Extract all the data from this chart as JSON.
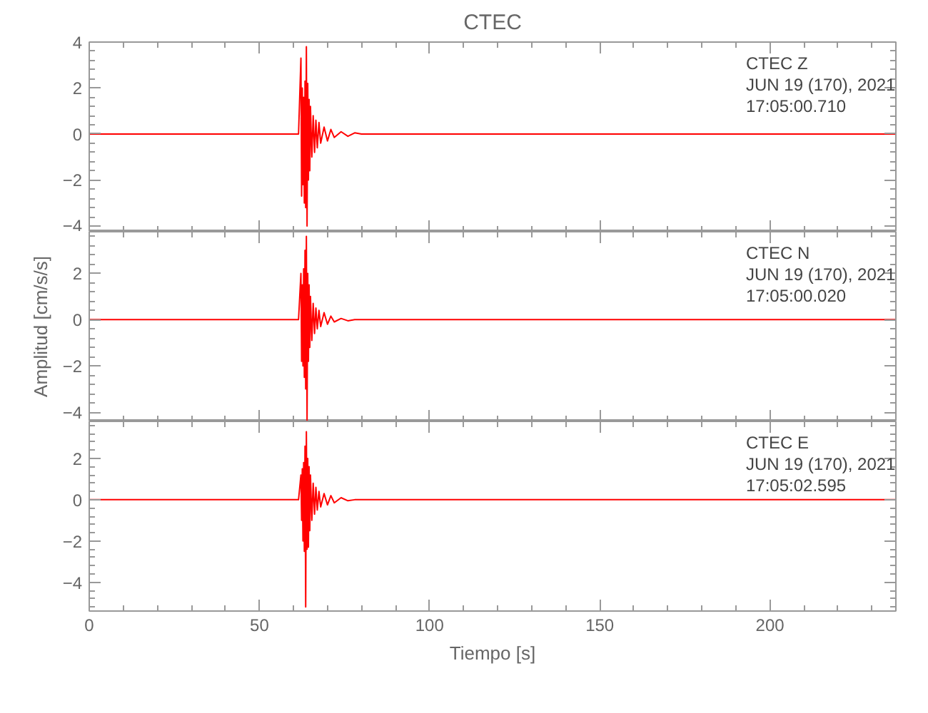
{
  "chart_data": [
    {
      "type": "line",
      "title": "CTEC",
      "annotations": [
        "CTEC   Z",
        "JUN 19 (170), 2021",
        "17:05:00.710"
      ],
      "tick_labels": "y",
      "xlim": [
        0,
        237
      ],
      "xticks": [
        0,
        50,
        100,
        150,
        200
      ],
      "ylim": [
        -4.25,
        4.0
      ],
      "yticks": [
        -4,
        -2,
        0,
        2,
        4
      ],
      "x": [
        0,
        10,
        20,
        30,
        40,
        50,
        60,
        61.5,
        62.2,
        62.4,
        62.6,
        62.8,
        63.0,
        63.2,
        63.4,
        63.6,
        63.8,
        64.0,
        64.2,
        64.4,
        64.6,
        64.8,
        65.0,
        65.4,
        65.8,
        66.2,
        66.6,
        67,
        67.5,
        68,
        69,
        70,
        71,
        72,
        74,
        76,
        78,
        80,
        90,
        100,
        120,
        140,
        160,
        180,
        200,
        220,
        237
      ],
      "series": [
        {
          "color": "#ff0000",
          "values": [
            0,
            0,
            0,
            0,
            0,
            0,
            0,
            0,
            3.3,
            -2.7,
            2.0,
            -2.2,
            1.6,
            -3.0,
            2.3,
            -3.2,
            3.8,
            -4.0,
            2.2,
            -2.0,
            1.5,
            -1.6,
            1.2,
            -1.0,
            0.8,
            -0.8,
            0.6,
            -0.6,
            0.5,
            -0.4,
            0.3,
            -0.3,
            0.2,
            -0.15,
            0.1,
            -0.1,
            0.05,
            0,
            0,
            0,
            0,
            0,
            0,
            0,
            0,
            0,
            0
          ]
        }
      ]
    },
    {
      "type": "line",
      "ylabel": "Amplitud [cm/s/s]",
      "annotations": [
        "CTEC   N",
        "JUN 19 (170), 2021",
        "17:05:00.020"
      ],
      "tick_labels": "y",
      "xlim": [
        0,
        237
      ],
      "xticks": [
        0,
        50,
        100,
        150,
        200
      ],
      "ylim": [
        -4.4,
        3.8
      ],
      "yticks": [
        -4,
        -2,
        0,
        2
      ],
      "x": [
        0,
        10,
        20,
        30,
        40,
        50,
        60,
        61.5,
        62.2,
        62.4,
        62.6,
        62.8,
        63.0,
        63.2,
        63.4,
        63.6,
        63.8,
        64.0,
        64.2,
        64.4,
        64.6,
        64.8,
        65.0,
        65.4,
        65.8,
        66.2,
        66.6,
        67,
        67.5,
        68,
        69,
        70,
        71,
        72,
        74,
        76,
        78,
        80,
        90,
        100,
        120,
        140,
        160,
        180,
        200,
        220,
        237
      ],
      "series": [
        {
          "color": "#ff0000",
          "values": [
            0,
            0,
            0,
            0,
            0,
            0,
            0,
            0,
            2.0,
            -1.8,
            1.5,
            -2.0,
            2.2,
            -2.5,
            3.0,
            -3.0,
            3.6,
            -4.4,
            2.0,
            -1.8,
            1.5,
            -1.2,
            1.0,
            -0.9,
            0.7,
            -0.6,
            0.5,
            -0.4,
            0.4,
            -0.3,
            0.3,
            -0.2,
            0.15,
            -0.1,
            0.05,
            -0.05,
            0,
            0,
            0,
            0,
            0,
            0,
            0,
            0,
            0,
            0,
            0
          ]
        }
      ]
    },
    {
      "type": "line",
      "xlabel": "Tiempo [s]",
      "annotations": [
        "CTEC   E",
        "JUN 19 (170), 2021",
        "17:05:02.595"
      ],
      "xlim": [
        0,
        237
      ],
      "xticks": [
        0,
        50,
        100,
        150,
        200
      ],
      "ylim": [
        -5.4,
        3.8
      ],
      "yticks": [
        -4,
        -2,
        0,
        2
      ],
      "x": [
        0,
        10,
        20,
        30,
        40,
        50,
        60,
        61.5,
        62.2,
        62.4,
        62.6,
        62.8,
        63.0,
        63.2,
        63.4,
        63.6,
        63.8,
        64.0,
        64.2,
        64.4,
        64.6,
        64.8,
        65.0,
        65.4,
        65.8,
        66.2,
        66.6,
        67,
        67.5,
        68,
        69,
        70,
        71,
        72,
        74,
        76,
        78,
        80,
        90,
        100,
        120,
        140,
        160,
        180,
        200,
        220,
        237
      ],
      "series": [
        {
          "color": "#ff0000",
          "values": [
            0,
            0,
            0,
            0,
            0,
            0,
            0,
            0,
            1.2,
            -1.0,
            1.5,
            -2.0,
            1.8,
            -2.5,
            2.6,
            -5.2,
            3.3,
            -2.4,
            2.0,
            -2.3,
            1.6,
            -1.5,
            1.2,
            -1.0,
            0.8,
            -0.7,
            0.6,
            -0.5,
            0.4,
            -0.35,
            0.3,
            -0.25,
            0.2,
            -0.15,
            0.1,
            -0.05,
            0,
            0,
            0,
            0,
            0,
            0,
            0,
            0,
            0,
            0,
            0
          ]
        }
      ]
    }
  ]
}
